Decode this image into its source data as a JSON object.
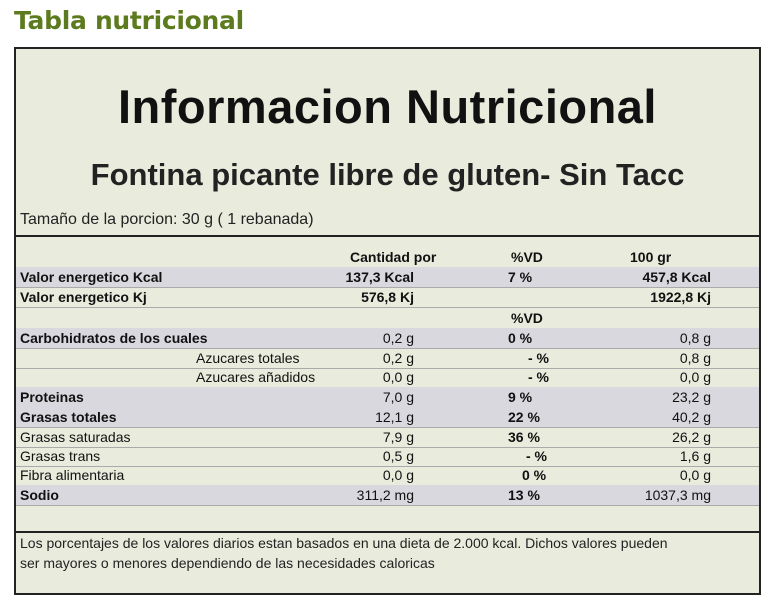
{
  "header": {
    "title": "Tabla nutricional"
  },
  "label": {
    "title": "Informacion Nutricional",
    "product": "Fontina picante libre de gluten- Sin Tacc",
    "portion": "Tamaño de la porcion: 30 g ( 1 rebanada)"
  },
  "table1": {
    "headers": {
      "qty": "Cantidad por",
      "pct": "%VD",
      "per100": "100 gr"
    },
    "rows": [
      {
        "name": "Valor energetico Kcal",
        "qty": "137,3 Kcal",
        "pct": "7 %",
        "per100": "457,8 Kcal"
      },
      {
        "name": "Valor energetico Kj",
        "qty": "576,8 Kj",
        "pct": "",
        "per100": "1922,8 Kj"
      }
    ]
  },
  "table2": {
    "header_pct": "%VD",
    "rows": [
      {
        "name": "Carbohidratos de los cuales",
        "qty": "0,2 g",
        "pct": "0 %",
        "per100": "0,8 g"
      },
      {
        "name": "Azucares totales",
        "qty": "0,2 g",
        "pct": "-   %",
        "per100": "0,8 g"
      },
      {
        "name": "Azucares añadidos",
        "qty": "0,0 g",
        "pct": "-   %",
        "per100": "0,0 g"
      },
      {
        "name": "Proteinas",
        "qty": "7,0 g",
        "pct": "9 %",
        "per100": "23,2 g"
      },
      {
        "name": "Grasas totales",
        "qty": "12,1 g",
        "pct": "22 %",
        "per100": "40,2 g"
      },
      {
        "name": "Grasas saturadas",
        "qty": "7,9 g",
        "pct": "36 %",
        "per100": "26,2 g"
      },
      {
        "name": "Grasas trans",
        "qty": "0,5 g",
        "pct": "- %",
        "per100": "1,6 g"
      },
      {
        "name": "Fibra alimentaria",
        "qty": "0,0 g",
        "pct": "0 %",
        "per100": "0,0 g"
      },
      {
        "name": "Sodio",
        "qty": "311,2 mg",
        "pct": "13 %",
        "per100": "1037,3 mg"
      }
    ]
  },
  "footer": {
    "note_line1": "Los porcentajes de los valores diarios estan basados en una dieta de 2.000 kcal. Dichos valores pueden",
    "note_line2": "ser mayores o menores dependiendo de las necesidades caloricas"
  }
}
